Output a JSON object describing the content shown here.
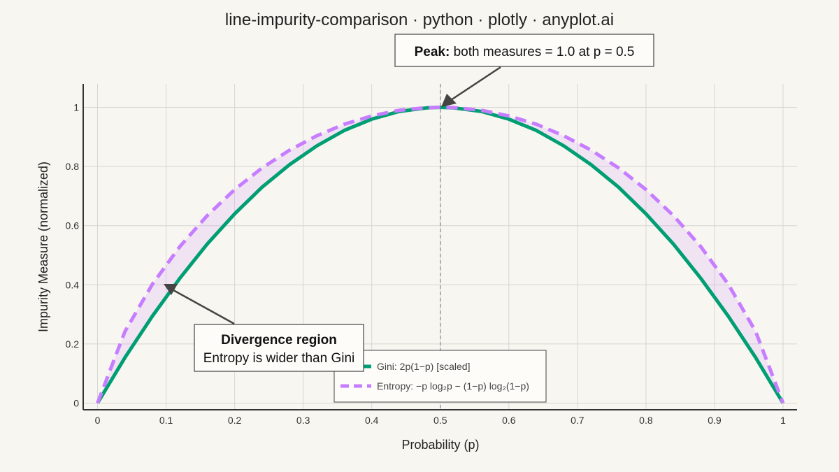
{
  "colors": {
    "background": "#f8f6f0",
    "gini": "#009e73",
    "entropy": "#c77dff",
    "fill": "rgba(199,125,255,0.15)",
    "peak_line": "#999999",
    "annotation_arrow": "#444444"
  },
  "chart_data": {
    "type": "line",
    "title": "line-impurity-comparison · python · plotly · anyplot.ai",
    "xlabel": "Probability (p)",
    "ylabel": "Impurity Measure (normalized)",
    "xlim": [
      0,
      1
    ],
    "ylim": [
      0,
      1
    ],
    "xticks": [
      "0",
      "0.1",
      "0.2",
      "0.3",
      "0.4",
      "0.5",
      "0.6",
      "0.7",
      "0.8",
      "0.9",
      "1"
    ],
    "yticks": [
      "0",
      "0.2",
      "0.4",
      "0.6",
      "0.8",
      "1"
    ],
    "grid": true,
    "legend_position": "bottom-center",
    "x": [
      0,
      0.04,
      0.08,
      0.12,
      0.16,
      0.2,
      0.24,
      0.28,
      0.32,
      0.36,
      0.4,
      0.44,
      0.48,
      0.5,
      0.52,
      0.56,
      0.6,
      0.64,
      0.68,
      0.72,
      0.76,
      0.8,
      0.84,
      0.88,
      0.92,
      0.96,
      1
    ],
    "series": [
      {
        "name": "Gini: 2p(1−p) [scaled]",
        "style": "solid",
        "color": "#009e73",
        "values": [
          0,
          0.154,
          0.294,
          0.422,
          0.538,
          0.64,
          0.73,
          0.806,
          0.87,
          0.922,
          0.96,
          0.986,
          0.998,
          1,
          0.998,
          0.986,
          0.96,
          0.922,
          0.87,
          0.806,
          0.73,
          0.64,
          0.538,
          0.422,
          0.294,
          0.154,
          0
        ]
      },
      {
        "name": "Entropy: −p log₂p − (1−p) log₂(1−p)",
        "style": "dash",
        "color": "#c77dff",
        "values": [
          0,
          0.242,
          0.402,
          0.529,
          0.634,
          0.722,
          0.795,
          0.855,
          0.904,
          0.943,
          0.971,
          0.99,
          0.999,
          1,
          0.999,
          0.99,
          0.971,
          0.943,
          0.904,
          0.855,
          0.795,
          0.722,
          0.634,
          0.529,
          0.402,
          0.242,
          0
        ]
      }
    ],
    "peak_marker": {
      "x": 0.5
    },
    "annotations": [
      {
        "bold": "Peak:",
        "text": " both measures = 1.0 at p = 0.5",
        "points_to": {
          "x": 0.5,
          "y": 1.0
        }
      },
      {
        "bold": "Divergence region",
        "text": "Entropy is wider than Gini",
        "points_to": {
          "x": 0.1,
          "y": 0.4
        }
      }
    ]
  }
}
